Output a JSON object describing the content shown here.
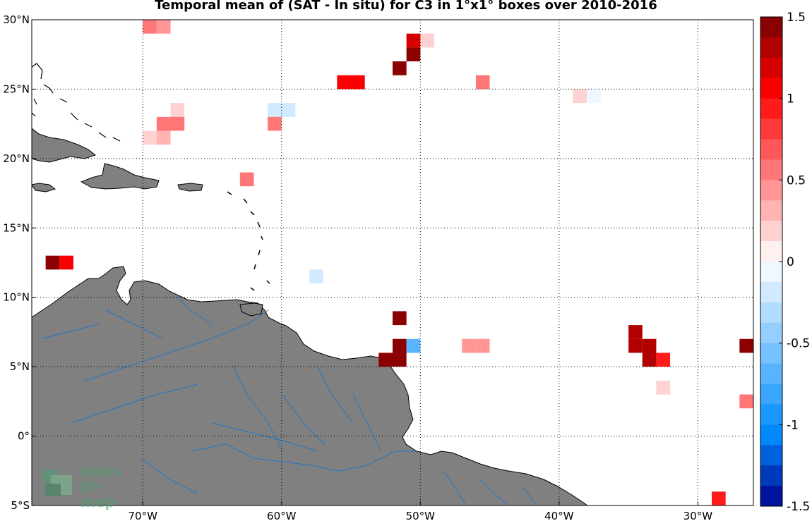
{
  "title": "Temporal mean of (SAT - In situ) for C3 in 1°x1° boxes over 2010-2016",
  "map": {
    "lon_range": [
      -78,
      -26
    ],
    "lat_range": [
      -5,
      30
    ],
    "x_ticks": [
      {
        "lon": -70,
        "label": "70°W"
      },
      {
        "lon": -60,
        "label": "60°W"
      },
      {
        "lon": -50,
        "label": "50°W"
      },
      {
        "lon": -40,
        "label": "40°W"
      },
      {
        "lon": -30,
        "label": "30°W"
      }
    ],
    "y_ticks": [
      {
        "lat": 30,
        "label": "30°N"
      },
      {
        "lat": 25,
        "label": "25°N"
      },
      {
        "lat": 20,
        "label": "20°N"
      },
      {
        "lat": 15,
        "label": "15°N"
      },
      {
        "lat": 10,
        "label": "10°N"
      },
      {
        "lat": 5,
        "label": "5°N"
      },
      {
        "lat": 0,
        "label": "0°"
      },
      {
        "lat": -5,
        "label": "5°S"
      }
    ],
    "grid": "dotted",
    "colors": {
      "land": "#808080",
      "rivers": "#1f78c8",
      "coast": "#000000"
    }
  },
  "colorbar": {
    "min": -1.5,
    "max": 1.5,
    "ticks": [
      {
        "value": 1.5,
        "label": "1.5"
      },
      {
        "value": 1.0,
        "label": "1"
      },
      {
        "value": 0.5,
        "label": "0.5"
      },
      {
        "value": 0.0,
        "label": "0"
      },
      {
        "value": -0.5,
        "label": "-0.5"
      },
      {
        "value": -1.0,
        "label": "-1"
      },
      {
        "value": -1.5,
        "label": "-1.5"
      }
    ]
  },
  "logo": {
    "line1": "smos",
    "line2": "pi-mep"
  },
  "chart_data": {
    "type": "heatmap",
    "title": "Temporal mean of (SAT - In situ) for C3 in 1°x1° boxes over 2010-2016",
    "x_unit": "longitude (°)",
    "y_unit": "latitude (°)",
    "color_scale": [
      -1.5,
      1.5
    ],
    "cells": [
      {
        "lon": -70,
        "lat": 29,
        "value": 0.55
      },
      {
        "lon": -69,
        "lat": 29,
        "value": 0.4
      },
      {
        "lon": -51,
        "lat": 28,
        "value": 1.15
      },
      {
        "lon": -50,
        "lat": 28,
        "value": 0.15
      },
      {
        "lon": -51,
        "lat": 27,
        "value": 1.4
      },
      {
        "lon": -52,
        "lat": 26,
        "value": 1.4
      },
      {
        "lon": -56,
        "lat": 25,
        "value": 1.0
      },
      {
        "lon": -55,
        "lat": 25,
        "value": 1.0
      },
      {
        "lon": -46,
        "lat": 25,
        "value": 0.6
      },
      {
        "lon": -39,
        "lat": 24,
        "value": 0.15
      },
      {
        "lon": -38,
        "lat": 24,
        "value": -0.1
      },
      {
        "lon": -61,
        "lat": 23,
        "value": -0.25
      },
      {
        "lon": -60,
        "lat": 23,
        "value": -0.15
      },
      {
        "lon": -68,
        "lat": 23,
        "value": 0.15
      },
      {
        "lon": -69,
        "lat": 22,
        "value": 0.6
      },
      {
        "lon": -68,
        "lat": 22,
        "value": 0.55
      },
      {
        "lon": -61,
        "lat": 22,
        "value": 0.6
      },
      {
        "lon": -70,
        "lat": 21,
        "value": 0.2
      },
      {
        "lon": -69,
        "lat": 21,
        "value": 0.3
      },
      {
        "lon": -63,
        "lat": 18,
        "value": 0.5
      },
      {
        "lon": -77,
        "lat": 12,
        "value": 1.5
      },
      {
        "lon": -76,
        "lat": 12,
        "value": 1.0
      },
      {
        "lon": -58,
        "lat": 11,
        "value": -0.25
      },
      {
        "lon": -52,
        "lat": 8,
        "value": 1.45
      },
      {
        "lon": -52,
        "lat": 6,
        "value": 1.45
      },
      {
        "lon": -51,
        "lat": 6,
        "value": -0.75
      },
      {
        "lon": -47,
        "lat": 6,
        "value": 0.45
      },
      {
        "lon": -46,
        "lat": 6,
        "value": 0.45
      },
      {
        "lon": -35,
        "lat": 7,
        "value": 1.25
      },
      {
        "lon": -35,
        "lat": 6,
        "value": 1.25
      },
      {
        "lon": -34,
        "lat": 6,
        "value": 1.25
      },
      {
        "lon": -27,
        "lat": 6,
        "value": 1.5
      },
      {
        "lon": -53,
        "lat": 5,
        "value": 1.45
      },
      {
        "lon": -52,
        "lat": 5,
        "value": 1.45
      },
      {
        "lon": -34,
        "lat": 5,
        "value": 1.25
      },
      {
        "lon": -33,
        "lat": 5,
        "value": 0.95
      },
      {
        "lon": -33,
        "lat": 3,
        "value": 0.15
      },
      {
        "lon": -27,
        "lat": 2,
        "value": 0.6
      },
      {
        "lon": -29,
        "lat": -5,
        "value": 0.95
      }
    ]
  }
}
